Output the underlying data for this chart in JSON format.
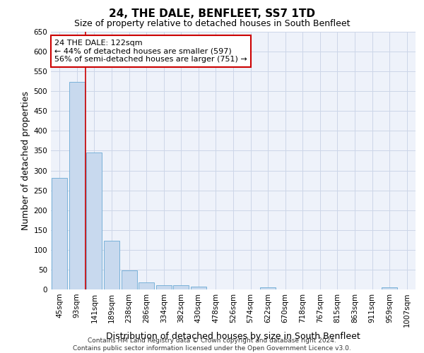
{
  "title": "24, THE DALE, BENFLEET, SS7 1TD",
  "subtitle": "Size of property relative to detached houses in South Benfleet",
  "xlabel": "Distribution of detached houses by size in South Benfleet",
  "ylabel": "Number of detached properties",
  "bar_color": "#c8d9ee",
  "bar_edge_color": "#6aaad4",
  "grid_color": "#ccd6e8",
  "background_color": "#eef2fa",
  "categories": [
    "45sqm",
    "93sqm",
    "141sqm",
    "189sqm",
    "238sqm",
    "286sqm",
    "334sqm",
    "382sqm",
    "430sqm",
    "478sqm",
    "526sqm",
    "574sqm",
    "622sqm",
    "670sqm",
    "718sqm",
    "767sqm",
    "815sqm",
    "863sqm",
    "911sqm",
    "959sqm",
    "1007sqm"
  ],
  "values": [
    282,
    524,
    346,
    122,
    48,
    17,
    11,
    11,
    7,
    0,
    0,
    0,
    6,
    0,
    0,
    0,
    0,
    0,
    0,
    6,
    0
  ],
  "vline_color": "#cc0000",
  "vline_x_index": 1.5,
  "annotation_text": "24 THE DALE: 122sqm\n← 44% of detached houses are smaller (597)\n56% of semi-detached houses are larger (751) →",
  "annotation_box_color": "white",
  "annotation_box_edge": "#cc0000",
  "ylim": [
    0,
    650
  ],
  "yticks": [
    0,
    50,
    100,
    150,
    200,
    250,
    300,
    350,
    400,
    450,
    500,
    550,
    600,
    650
  ],
  "footer": "Contains HM Land Registry data © Crown copyright and database right 2024.\nContains public sector information licensed under the Open Government Licence v3.0.",
  "title_fontsize": 11,
  "subtitle_fontsize": 9,
  "xlabel_fontsize": 9,
  "ylabel_fontsize": 9,
  "tick_fontsize": 7.5,
  "footer_fontsize": 6.5
}
